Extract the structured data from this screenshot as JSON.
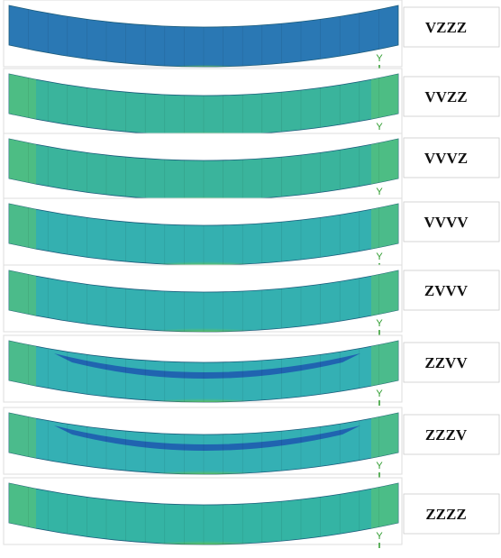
{
  "panels": [
    {
      "label": "VZZZ",
      "axis": "Y"
    },
    {
      "label": "VVZZ",
      "axis": "Y"
    },
    {
      "label": "VVVZ",
      "axis": "Y"
    },
    {
      "label": "VVVV",
      "axis": "Y"
    },
    {
      "label": "ZVVV",
      "axis": "Y"
    },
    {
      "label": "ZZVV",
      "axis": "Y"
    },
    {
      "label": "ZZZV",
      "axis": "Y"
    },
    {
      "label": "ZZZZ",
      "axis": "Y"
    }
  ]
}
